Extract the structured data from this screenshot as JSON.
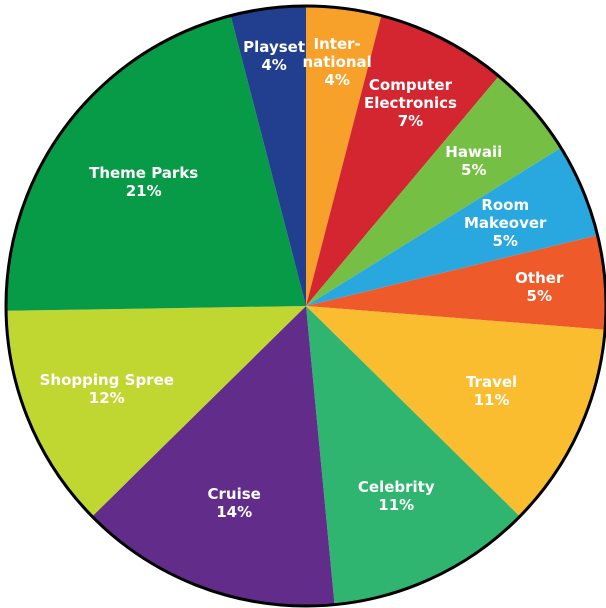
{
  "chart_data": {
    "type": "pie",
    "categories": [
      "Inter-\nnational",
      "Computer\nElectronics",
      "Hawaii",
      "Room\nMakeover",
      "Other",
      "Travel",
      "Celebrity",
      "Cruise",
      "Shopping Spree",
      "Theme Parks",
      "Playset"
    ],
    "values": [
      4,
      7,
      5,
      5,
      5,
      11,
      11,
      14,
      12,
      21,
      4
    ],
    "value_labels": [
      "4%",
      "7%",
      "5%",
      "5%",
      "5%",
      "11%",
      "11%",
      "14%",
      "12%",
      "21%",
      "4%"
    ],
    "colors": [
      "#f7a12b",
      "#d42630",
      "#76bf45",
      "#29a8e0",
      "#ef5a2b",
      "#fbbd30",
      "#2fb56f",
      "#612c8a",
      "#c0d631",
      "#079b48",
      "#223f8f"
    ]
  }
}
